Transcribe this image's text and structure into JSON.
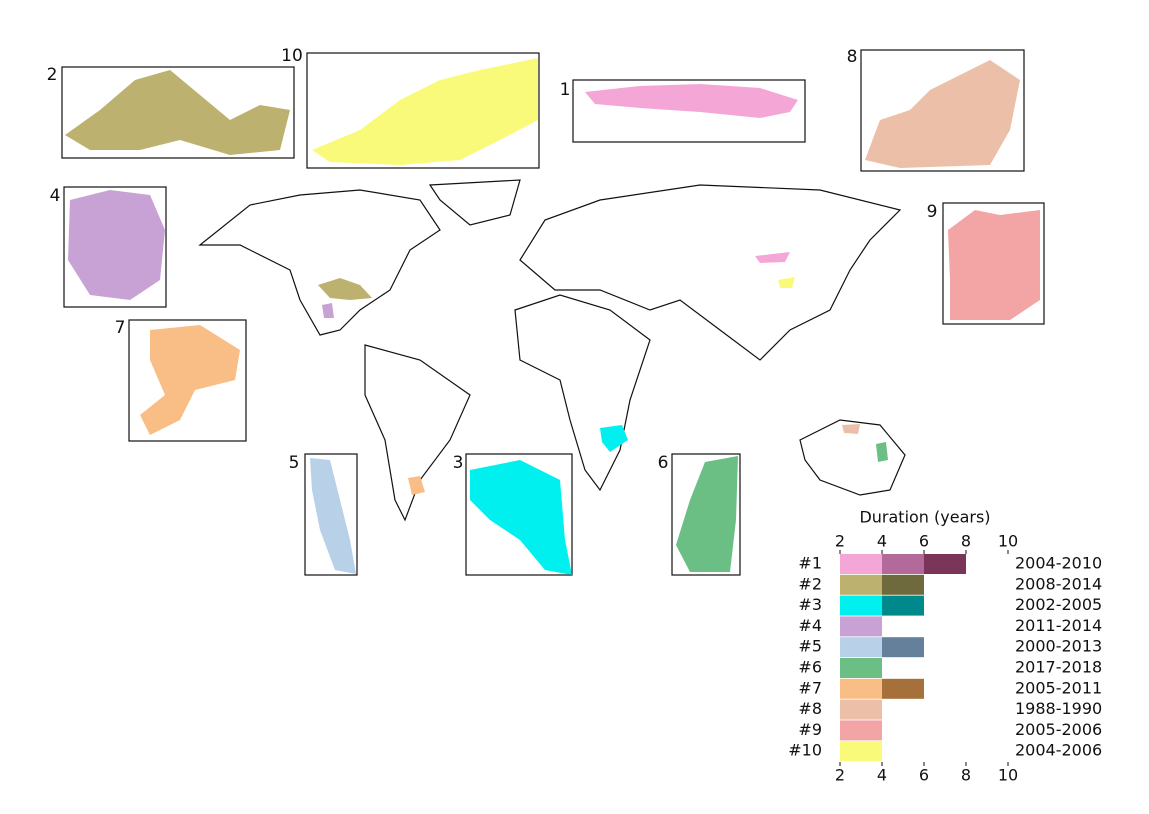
{
  "insets": [
    "1",
    "2",
    "3",
    "4",
    "5",
    "6",
    "7",
    "8",
    "9",
    "10"
  ],
  "legend": {
    "title": "Duration (years)",
    "xlim": [
      2,
      10
    ],
    "xticks": [
      2,
      4,
      6,
      8,
      10
    ],
    "rows": [
      {
        "label": "#1",
        "period": "2004-2010",
        "segment_ends": [
          4,
          6,
          8
        ],
        "colors": [
          "#f4a6d7",
          "#b36a9a",
          "#7a3558"
        ]
      },
      {
        "label": "#2",
        "period": "2008-2014",
        "segment_ends": [
          4,
          6
        ],
        "colors": [
          "#bdb16f",
          "#6f6a3e"
        ]
      },
      {
        "label": "#3",
        "period": "2002-2005",
        "segment_ends": [
          4,
          6
        ],
        "colors": [
          "#00f0f0",
          "#00898a"
        ]
      },
      {
        "label": "#4",
        "period": "2011-2014",
        "segment_ends": [
          4
        ],
        "colors": [
          "#c8a2d4"
        ]
      },
      {
        "label": "#5",
        "period": "2000-2013",
        "segment_ends": [
          4,
          6
        ],
        "colors": [
          "#b8d0e8",
          "#65809a"
        ]
      },
      {
        "label": "#6",
        "period": "2017-2018",
        "segment_ends": [
          4
        ],
        "colors": [
          "#6cbf84"
        ]
      },
      {
        "label": "#7",
        "period": "2005-2011",
        "segment_ends": [
          4,
          6
        ],
        "colors": [
          "#f9be86",
          "#a6703a"
        ]
      },
      {
        "label": "#8",
        "period": "1988-1990",
        "segment_ends": [
          4
        ],
        "colors": [
          "#ecc0a8"
        ]
      },
      {
        "label": "#9",
        "period": "2005-2006",
        "segment_ends": [
          4
        ],
        "colors": [
          "#f3a5a5"
        ]
      },
      {
        "label": "#10",
        "period": "2004-2006",
        "segment_ends": [
          4
        ],
        "colors": [
          "#fafa7a"
        ]
      }
    ]
  }
}
